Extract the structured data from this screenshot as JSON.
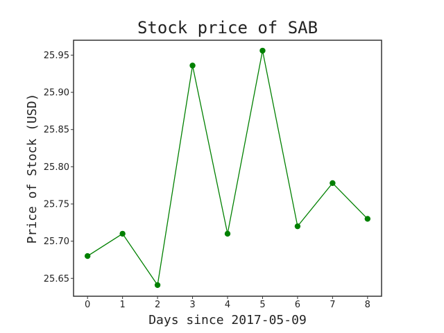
{
  "chart_data": {
    "type": "line",
    "title": "Stock price of SAB",
    "xlabel": "Days since 2017-05-09",
    "ylabel": "Price of Stock (USD)",
    "x": [
      0,
      1,
      2,
      3,
      4,
      5,
      6,
      7,
      8
    ],
    "series": [
      {
        "values": [
          25.68,
          25.71,
          25.641,
          25.936,
          25.71,
          25.956,
          25.72,
          25.778,
          25.73
        ],
        "color": "#008000",
        "marker": "circle"
      }
    ],
    "xticks": [
      "0",
      "1",
      "2",
      "3",
      "4",
      "5",
      "6",
      "7",
      "8"
    ],
    "yticks": [
      "25.65",
      "25.70",
      "25.75",
      "25.80",
      "25.85",
      "25.90",
      "25.95"
    ],
    "xlim": [
      -0.4,
      8.4
    ],
    "ylim": [
      25.626,
      25.97
    ],
    "grid": false,
    "legend": false
  }
}
